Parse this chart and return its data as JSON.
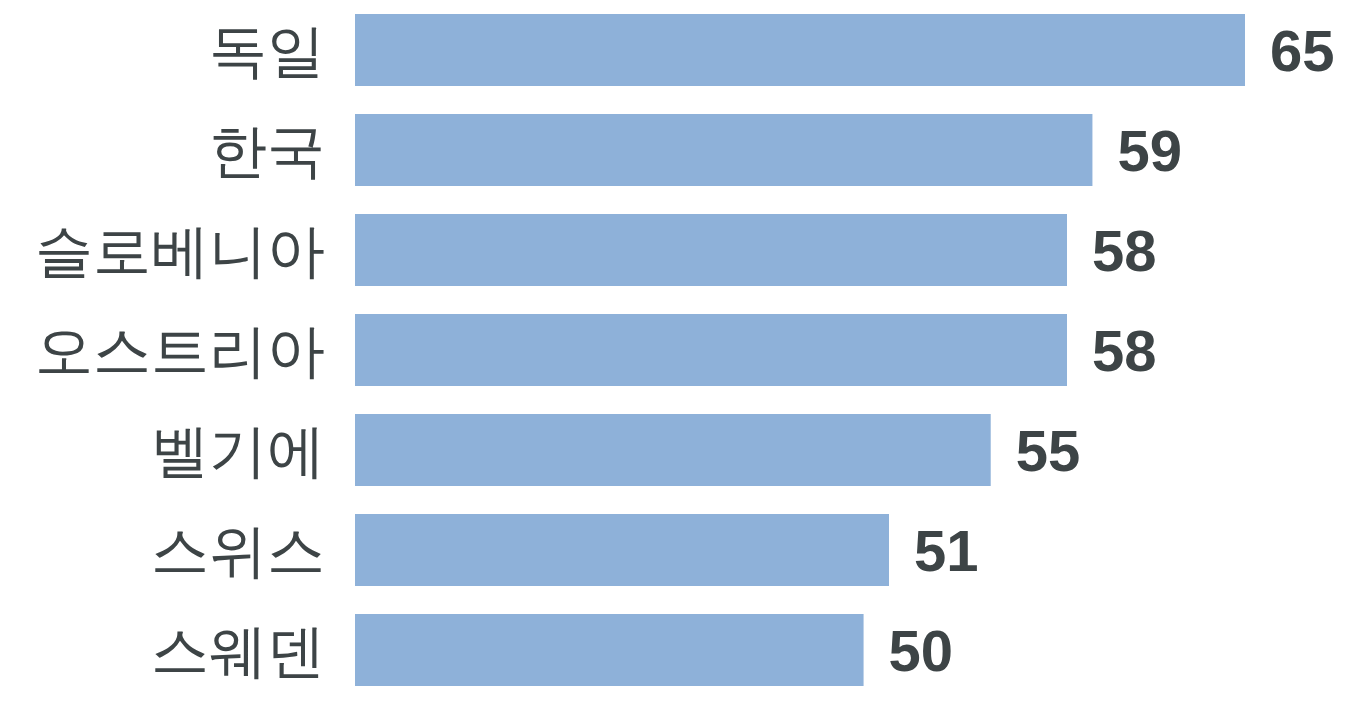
{
  "chart_data": {
    "type": "bar",
    "orientation": "horizontal",
    "categories": [
      "독일",
      "한국",
      "슬로베니아",
      "오스트리아",
      "벨기에",
      "스위스",
      "스웨덴"
    ],
    "values": [
      65,
      59,
      58,
      58,
      55,
      51,
      50
    ],
    "color": "#8eb1d9",
    "xlim": [
      30,
      65
    ],
    "data_labels": true,
    "tick_labels": "y"
  }
}
